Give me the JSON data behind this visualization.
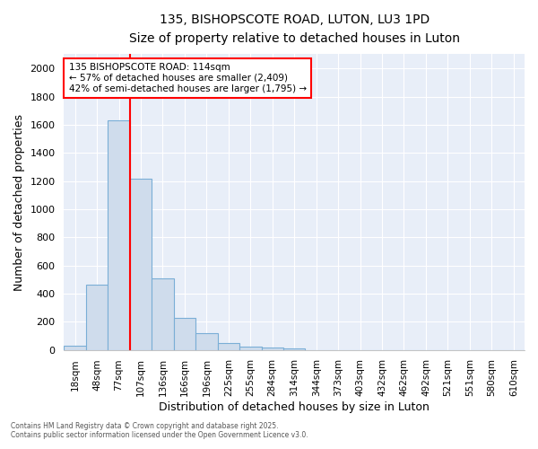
{
  "title1": "135, BISHOPSCOTE ROAD, LUTON, LU3 1PD",
  "title2": "Size of property relative to detached houses in Luton",
  "xlabel": "Distribution of detached houses by size in Luton",
  "ylabel": "Number of detached properties",
  "categories": [
    "18sqm",
    "48sqm",
    "77sqm",
    "107sqm",
    "136sqm",
    "166sqm",
    "196sqm",
    "225sqm",
    "255sqm",
    "284sqm",
    "314sqm",
    "344sqm",
    "373sqm",
    "403sqm",
    "432sqm",
    "462sqm",
    "492sqm",
    "521sqm",
    "551sqm",
    "580sqm",
    "610sqm"
  ],
  "values": [
    30,
    465,
    1630,
    1215,
    505,
    225,
    120,
    50,
    25,
    18,
    12,
    0,
    0,
    0,
    0,
    0,
    0,
    0,
    0,
    0,
    0
  ],
  "bar_color": "#cfdcec",
  "bar_edge_color": "#7aaed6",
  "vline_after_index": 2,
  "vline_color": "red",
  "annotation_text": "135 BISHOPSCOTE ROAD: 114sqm\n← 57% of detached houses are smaller (2,409)\n42% of semi-detached houses are larger (1,795) →",
  "annotation_box_color": "white",
  "annotation_box_edge": "red",
  "ylim": [
    0,
    2100
  ],
  "yticks": [
    0,
    200,
    400,
    600,
    800,
    1000,
    1200,
    1400,
    1600,
    1800,
    2000
  ],
  "plot_bg_color": "#e8eef8",
  "fig_bg_color": "#ffffff",
  "grid_color": "#ffffff",
  "footer1": "Contains HM Land Registry data © Crown copyright and database right 2025.",
  "footer2": "Contains public sector information licensed under the Open Government Licence v3.0."
}
